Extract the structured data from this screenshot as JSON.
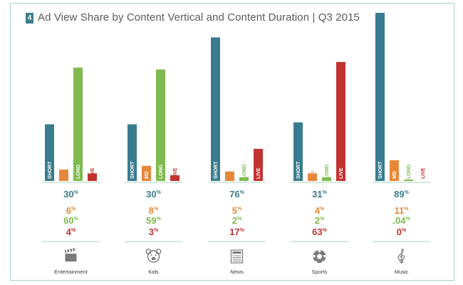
{
  "header": {
    "badge": "4",
    "title": "Ad View Share by Content Vertical and Content Duration | Q3 2015"
  },
  "colors": {
    "SHORT": "#3a7c8f",
    "MD": "#e5883a",
    "LONG": "#7fba4f",
    "LIVE": "#c13331",
    "frame": "#a8d4bf",
    "divider": "#a8d4bf",
    "icon": "#7a7a7a"
  },
  "chart_data": {
    "type": "bar",
    "title": "Ad View Share by Content Vertical and Content Duration | Q3 2015",
    "categories": [
      "Entertainment",
      "Kids",
      "News",
      "Sports",
      "Music"
    ],
    "series": [
      {
        "name": "SHORT",
        "values": [
          30,
          30,
          76,
          31,
          89
        ],
        "labels": [
          "30",
          "30",
          "76",
          "31",
          "89"
        ]
      },
      {
        "name": "MD",
        "values": [
          6,
          8,
          5,
          4,
          11
        ],
        "labels": [
          "6",
          "8",
          "5",
          "4",
          "11"
        ]
      },
      {
        "name": "LONG",
        "values": [
          60,
          59,
          2,
          2,
          0.04
        ],
        "labels": [
          "60",
          "59",
          "2",
          "2",
          ".04"
        ]
      },
      {
        "name": "LIVE",
        "values": [
          4,
          3,
          17,
          63,
          0
        ],
        "labels": [
          "4",
          "3",
          "17",
          "63",
          "0"
        ]
      }
    ],
    "unit": "%",
    "ylim": [
      0,
      89
    ],
    "grid": false,
    "legend": "none",
    "icons": [
      "clapperboard-icon",
      "teddy-bear-icon",
      "newspaper-icon",
      "soccer-ball-icon",
      "treble-clef-icon"
    ]
  }
}
